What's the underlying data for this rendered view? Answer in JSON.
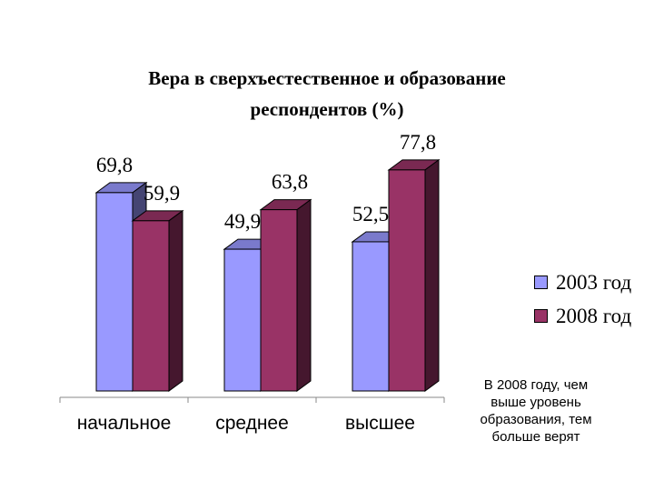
{
  "chart_data": {
    "type": "bar",
    "title_line1": "Вера в сверхъестественное и образование",
    "title_line2": "респондентов (%)",
    "categories": [
      "начальное",
      "среднее",
      "высшее"
    ],
    "series": [
      {
        "name": "2003 год",
        "color": "#9999ff",
        "values": [
          69.8,
          49.9,
          52.5
        ],
        "labels": [
          "69,8",
          "49,9",
          "52,5"
        ]
      },
      {
        "name": "2008 год",
        "color": "#993366",
        "values": [
          59.9,
          63.8,
          77.8
        ],
        "labels": [
          "59,9",
          "63,8",
          "77,8"
        ]
      }
    ],
    "ylim": [
      0,
      80
    ],
    "grid": false,
    "legend_position": "right",
    "three_d": true
  },
  "annotation": {
    "lines": [
      "В 2008 году, чем",
      "выше уровень",
      "образования, тем",
      "больше верят"
    ]
  }
}
